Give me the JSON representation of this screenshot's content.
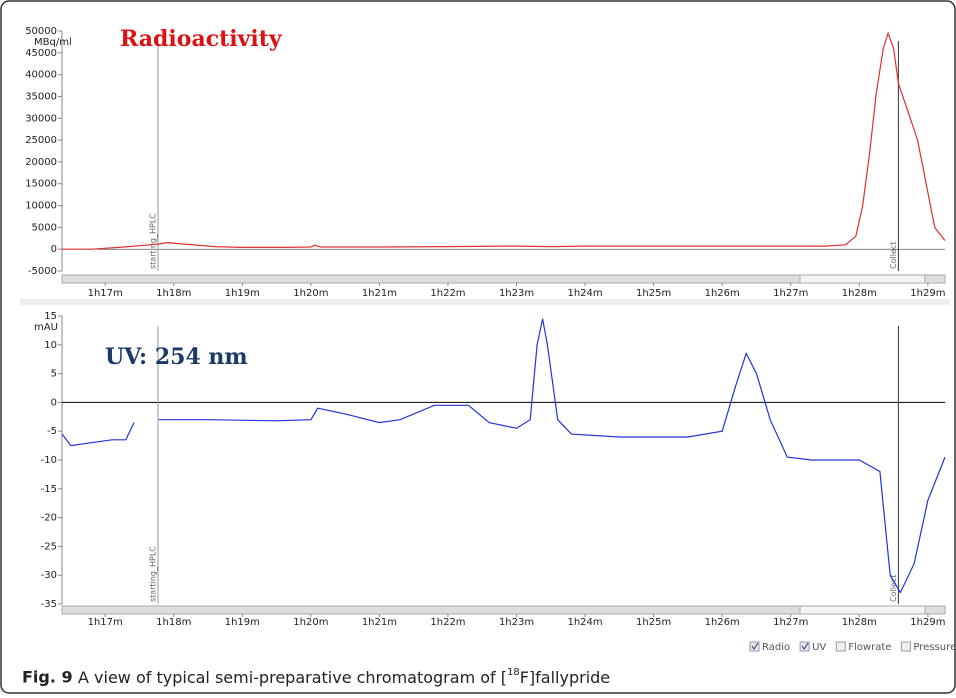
{
  "chart_data": [
    {
      "type": "line",
      "title": "Radioactivity",
      "y_label": "MBq/ml",
      "x": [
        76.37,
        76.8,
        77.2,
        77.5,
        77.8,
        77.9,
        78.2,
        78.6,
        79.0,
        79.6,
        80.0,
        80.05,
        80.15,
        81.0,
        82.0,
        83.0,
        83.5,
        84.0,
        85.0,
        86.0,
        87.0,
        87.5,
        87.8,
        87.95,
        88.05,
        88.15,
        88.25,
        88.35,
        88.42,
        88.5,
        88.57,
        88.7,
        88.85,
        89.0,
        89.1,
        89.25
      ],
      "series": [
        {
          "name": "Radio",
          "color": "#e03030",
          "values": [
            0,
            0,
            400,
            800,
            1200,
            1500,
            1100,
            600,
            400,
            400,
            500,
            900,
            500,
            500,
            600,
            700,
            600,
            700,
            700,
            700,
            700,
            700,
            1000,
            3000,
            10000,
            22000,
            36000,
            46000,
            49500,
            46000,
            38000,
            32000,
            25000,
            13000,
            5000,
            2000
          ]
        }
      ],
      "xlim": [
        76.37,
        89.25
      ],
      "xticks": [
        {
          "value": 77,
          "label": "1h17m"
        },
        {
          "value": 78,
          "label": "1h18m"
        },
        {
          "value": 79,
          "label": "1h19m"
        },
        {
          "value": 80,
          "label": "1h20m"
        },
        {
          "value": 81,
          "label": "1h21m"
        },
        {
          "value": 82,
          "label": "1h22m"
        },
        {
          "value": 83,
          "label": "1h23m"
        },
        {
          "value": 84,
          "label": "1h24m"
        },
        {
          "value": 85,
          "label": "1h25m"
        },
        {
          "value": 86,
          "label": "1h26m"
        },
        {
          "value": 87,
          "label": "1h27m"
        },
        {
          "value": 88,
          "label": "1h28m"
        },
        {
          "value": 89,
          "label": "1h29m"
        }
      ],
      "ylim": [
        -5000,
        50000
      ],
      "yticks": [
        50000,
        45000,
        40000,
        35000,
        30000,
        25000,
        20000,
        15000,
        10000,
        5000,
        0,
        -5000
      ],
      "annotations": [
        {
          "label": "starting_HPLC",
          "x": 77.77
        },
        {
          "label": "Collect",
          "x": 88.57
        }
      ]
    },
    {
      "type": "line",
      "title": "UV: 254 nm",
      "y_label": "mAU",
      "x": [
        76.37,
        76.5,
        76.8,
        77.1,
        77.3,
        77.42,
        77.6,
        77.78,
        78.5,
        79.5,
        80.0,
        80.1,
        80.5,
        81.0,
        81.3,
        81.8,
        82.3,
        82.6,
        83.0,
        83.2,
        83.3,
        83.38,
        83.45,
        83.6,
        83.8,
        84.5,
        85.0,
        85.5,
        86.0,
        86.2,
        86.35,
        86.5,
        86.7,
        86.95,
        87.3,
        88.0,
        88.3,
        88.45,
        88.6,
        88.8,
        89.0,
        89.25
      ],
      "series": [
        {
          "name": "UV",
          "color": "#2233dd",
          "values": [
            -5.5,
            -7.5,
            -7,
            -6.5,
            -6.5,
            -3.5,
            null,
            -3,
            -3,
            -3.2,
            -3,
            -1,
            -2,
            -3.5,
            -3,
            -0.5,
            -0.5,
            -3.5,
            -4.5,
            -3,
            10,
            14.5,
            10,
            -3,
            -5.5,
            -6,
            -6,
            -6,
            -5,
            3,
            8.5,
            5,
            -3,
            -9.5,
            -10,
            -10,
            -12,
            -30,
            -33,
            -28,
            -17,
            -9.5
          ]
        }
      ],
      "xlim": [
        76.37,
        89.25
      ],
      "xticks": [
        {
          "value": 77,
          "label": "1h17m"
        },
        {
          "value": 78,
          "label": "1h18m"
        },
        {
          "value": 79,
          "label": "1h19m"
        },
        {
          "value": 80,
          "label": "1h20m"
        },
        {
          "value": 81,
          "label": "1h21m"
        },
        {
          "value": 82,
          "label": "1h22m"
        },
        {
          "value": 83,
          "label": "1h23m"
        },
        {
          "value": 84,
          "label": "1h24m"
        },
        {
          "value": 85,
          "label": "1h25m"
        },
        {
          "value": 86,
          "label": "1h26m"
        },
        {
          "value": 87,
          "label": "1h27m"
        },
        {
          "value": 88,
          "label": "1h28m"
        },
        {
          "value": 89,
          "label": "1h29m"
        }
      ],
      "ylim": [
        -35,
        15
      ],
      "yticks": [
        15,
        10,
        5,
        0,
        -5,
        -10,
        -15,
        -20,
        -25,
        -30,
        -35
      ],
      "annotations": [
        {
          "label": "starting_HPLC",
          "x": 77.77
        },
        {
          "label": "Collect",
          "x": 88.57
        }
      ]
    }
  ],
  "legend_extra": [
    "Flowrate",
    "Pressure"
  ],
  "caption": {
    "label": "Fig. 9",
    "text": "A view of typical semi-preparative chromatogram of [",
    "superscript": "18",
    "text_end": "F]fallypride"
  }
}
